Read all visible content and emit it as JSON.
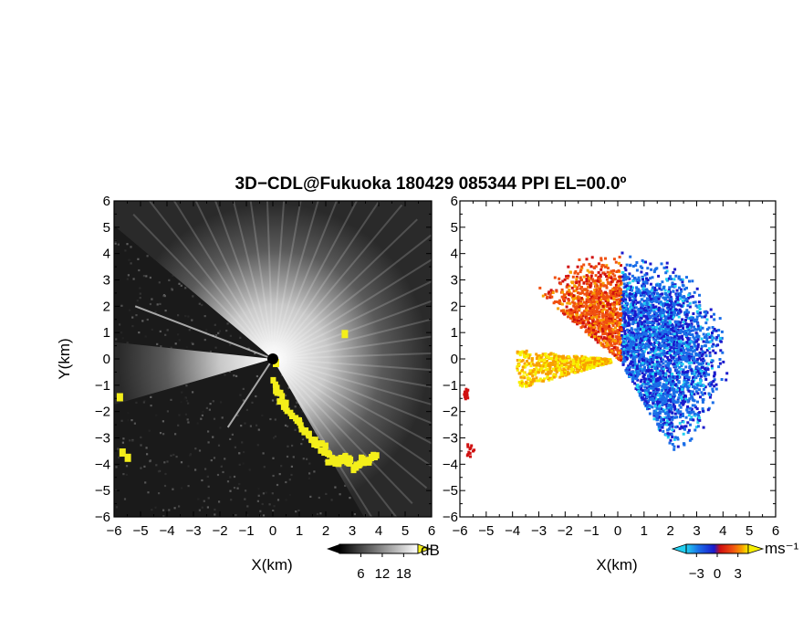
{
  "figure": {
    "title": "3D−CDL@Fukuoka 180429 085344 PPI EL=00.0º"
  },
  "chart_data": [
    {
      "type": "heatmap",
      "panel": "left",
      "quantity_unit": "dB",
      "xlabel": "X(km)",
      "ylabel": "Y(km)",
      "xlim": [
        -6,
        6
      ],
      "ylim": [
        -6,
        6
      ],
      "xticks": [
        "−6",
        "−5",
        "−4",
        "−3",
        "−2",
        "−1",
        "0",
        "1",
        "2",
        "3",
        "4",
        "5",
        "6"
      ],
      "yticks": [
        "6",
        "5",
        "4",
        "3",
        "2",
        "1",
        "0",
        "−1",
        "−2",
        "−3",
        "−4",
        "−5",
        "−6"
      ],
      "colorbar": {
        "unit": "dB",
        "ticks": [
          "6",
          "12",
          "18"
        ],
        "tick_values": [
          6,
          12,
          18
        ],
        "range": [
          0,
          22
        ],
        "colors": [
          "#000000",
          "#ffffff"
        ],
        "overflow_color": "#f4ef1a"
      },
      "clutter_color": "#f4ef1a",
      "background_color": "#1a1a1a"
    },
    {
      "type": "heatmap",
      "panel": "right",
      "quantity_unit": "ms⁻¹",
      "xlabel": "X(km)",
      "xlim": [
        -6,
        6
      ],
      "ylim": [
        -6,
        6
      ],
      "xticks": [
        "−6",
        "−5",
        "−4",
        "−3",
        "−2",
        "−1",
        "0",
        "1",
        "2",
        "3",
        "4",
        "5",
        "6"
      ],
      "yticks": [
        "6",
        "5",
        "4",
        "3",
        "2",
        "1",
        "0",
        "−1",
        "−2",
        "−3",
        "−4",
        "−5",
        "−6"
      ],
      "colorbar": {
        "unit": "ms⁻¹",
        "ticks": [
          "−3",
          "0",
          "3"
        ],
        "tick_values": [
          -3,
          0,
          3
        ],
        "range": [
          -4.5,
          4.5
        ],
        "colors": [
          "#22d0f0",
          "#1a6ee8",
          "#1a1acc",
          "#d01010",
          "#f05010",
          "#f8a000",
          "#f8f000"
        ]
      },
      "background_color": "#ffffff"
    }
  ]
}
